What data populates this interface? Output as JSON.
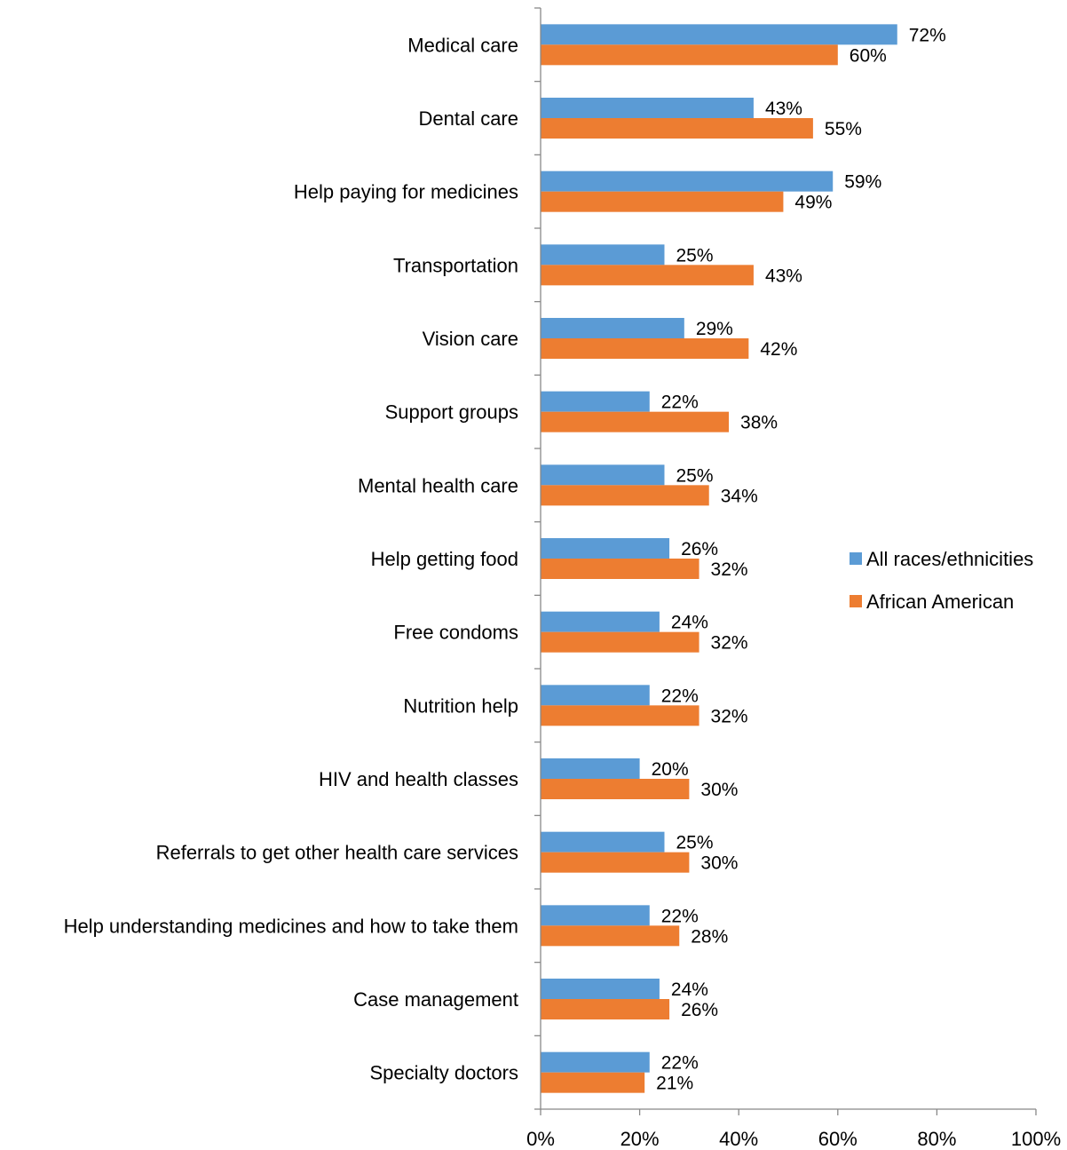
{
  "chart_data": {
    "type": "bar",
    "orientation": "horizontal",
    "categories": [
      "Medical care",
      "Dental care",
      "Help paying for medicines",
      "Transportation",
      "Vision care",
      "Support groups",
      "Mental health care",
      "Help getting food",
      "Free condoms",
      "Nutrition help",
      "HIV and health classes",
      "Referrals to get other health care services",
      "Help understanding medicines and how to take them",
      "Case management",
      "Specialty doctors"
    ],
    "series": [
      {
        "name": "All races/ethnicities",
        "color": "#5B9BD5",
        "values": [
          72,
          43,
          59,
          25,
          29,
          22,
          25,
          26,
          24,
          22,
          20,
          25,
          22,
          24,
          22
        ],
        "labels": [
          "72%",
          "43%",
          "59%",
          "25%",
          "29%",
          "22%",
          "25%",
          "26%",
          "24%",
          "22%",
          "20%",
          "25%",
          "22%",
          "24%",
          "22%"
        ]
      },
      {
        "name": "African American",
        "color": "#ED7D31",
        "values": [
          60,
          55,
          49,
          43,
          42,
          38,
          34,
          32,
          32,
          32,
          30,
          30,
          28,
          26,
          21
        ],
        "labels": [
          "60%",
          "55%",
          "49%",
          "43%",
          "42%",
          "38%",
          "34%",
          "32%",
          "32%",
          "32%",
          "30%",
          "30%",
          "28%",
          "26%",
          "21%"
        ]
      }
    ],
    "xlim": [
      0,
      100
    ],
    "xticks": [
      0,
      20,
      40,
      60,
      80,
      100
    ],
    "xtick_labels": [
      "0%",
      "20%",
      "40%",
      "60%",
      "80%",
      "100%"
    ],
    "grid": false,
    "legend_position": "right"
  }
}
